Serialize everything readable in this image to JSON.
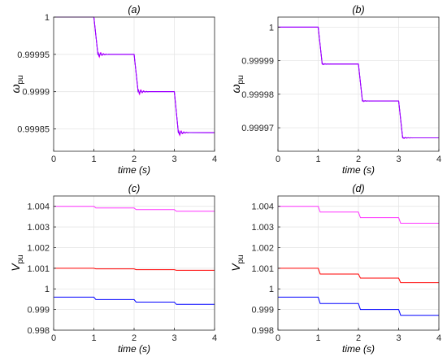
{
  "chart_data": [
    {
      "type": "line",
      "title": "(a)",
      "xlabel": "time (s)",
      "ylabel_main": "ω",
      "ylabel_sub": "pu",
      "xlim": [
        0,
        4
      ],
      "ylim": [
        0.99982,
        1.0
      ],
      "xticks": [
        0,
        1,
        2,
        3,
        4
      ],
      "xtick_labels": [
        "0",
        "1",
        "2",
        "3",
        "4"
      ],
      "yticks": [
        0.99985,
        0.9999,
        0.99995,
        1.0
      ],
      "ytick_labels": [
        "0.99985",
        "0.9999",
        "0.99995",
        "1"
      ],
      "grid": true,
      "series": [
        {
          "color": "#0000ff",
          "steps": [
            [
              1,
              1.0
            ],
            [
              1.1,
              0.99995
            ],
            [
              2,
              0.99995
            ],
            [
              2.1,
              0.9999
            ],
            [
              3,
              0.9999
            ],
            [
              3.1,
              0.999845
            ],
            [
              4,
              0.999845
            ]
          ],
          "osc": 2e-06
        },
        {
          "color": "#ff00ff",
          "steps": [
            [
              1,
              1.0
            ],
            [
              1.1,
              0.99995
            ],
            [
              2,
              0.99995
            ],
            [
              2.1,
              0.9999
            ],
            [
              3,
              0.9999
            ],
            [
              3.1,
              0.999845
            ],
            [
              4,
              0.999845
            ]
          ],
          "osc": 6e-06
        },
        {
          "color": "#9900ff",
          "steps": [
            [
              1,
              1.0
            ],
            [
              1.1,
              0.99995
            ],
            [
              2,
              0.99995
            ],
            [
              2.1,
              0.9999
            ],
            [
              3,
              0.9999
            ],
            [
              3.1,
              0.999845
            ],
            [
              4,
              0.999845
            ]
          ],
          "osc": 4e-06
        }
      ]
    },
    {
      "type": "line",
      "title": "(b)",
      "xlabel": "time (s)",
      "ylabel_main": "ω",
      "ylabel_sub": "pu",
      "xlim": [
        0,
        4
      ],
      "ylim": [
        0.999963,
        1.000003
      ],
      "xticks": [
        0,
        1,
        2,
        3,
        4
      ],
      "xtick_labels": [
        "0",
        "1",
        "2",
        "3",
        "4"
      ],
      "yticks": [
        0.99997,
        0.99998,
        0.99999,
        1.0
      ],
      "ytick_labels": [
        "0.99997",
        "0.99998",
        "0.99999",
        "1"
      ],
      "grid": true,
      "series": [
        {
          "color": "#0000ff",
          "steps": [
            [
              0,
              1.0
            ],
            [
              1,
              1.0
            ],
            [
              1.1,
              0.999989
            ],
            [
              2,
              0.999989
            ],
            [
              2.1,
              0.999978
            ],
            [
              3,
              0.999978
            ],
            [
              3.1,
              0.999967
            ],
            [
              4,
              0.999967
            ]
          ],
          "osc": 0.0
        },
        {
          "color": "#ff00ff",
          "steps": [
            [
              0,
              1.0
            ],
            [
              1,
              1.0
            ],
            [
              1.1,
              0.999989
            ],
            [
              2,
              0.999989
            ],
            [
              2.1,
              0.999978
            ],
            [
              3,
              0.999978
            ],
            [
              3.1,
              0.999967
            ],
            [
              4,
              0.999967
            ]
          ],
          "osc": 3e-07
        },
        {
          "color": "#9900ff",
          "steps": [
            [
              0,
              1.0
            ],
            [
              1,
              1.0
            ],
            [
              1.1,
              0.999989
            ],
            [
              2,
              0.999989
            ],
            [
              2.1,
              0.999978
            ],
            [
              3,
              0.999978
            ],
            [
              3.1,
              0.999967
            ],
            [
              4,
              0.999967
            ]
          ],
          "osc": 2e-07
        }
      ]
    },
    {
      "type": "line",
      "title": "(c)",
      "xlabel": "time (s)",
      "ylabel_main": "V",
      "ylabel_sub": "pu",
      "xlim": [
        0,
        4
      ],
      "ylim": [
        0.998,
        1.0045
      ],
      "xticks": [
        0,
        1,
        2,
        3,
        4
      ],
      "xtick_labels": [
        "0",
        "1",
        "2",
        "3",
        "4"
      ],
      "yticks": [
        0.998,
        0.999,
        1.0,
        1.001,
        1.002,
        1.003,
        1.004
      ],
      "ytick_labels": [
        "0.998",
        "0.999",
        "1",
        "1.001",
        "1.002",
        "1.003",
        "1.004"
      ],
      "grid": true,
      "series": [
        {
          "color": "#ff33ff",
          "steps": [
            [
              0,
              1.004
            ],
            [
              1,
              1.004
            ],
            [
              1.05,
              1.00392
            ],
            [
              2,
              1.00392
            ],
            [
              2.05,
              1.00384
            ],
            [
              3,
              1.00384
            ],
            [
              3.05,
              1.00376
            ],
            [
              4,
              1.00376
            ]
          ],
          "osc": 0.0
        },
        {
          "color": "#ff0000",
          "steps": [
            [
              0,
              1.001
            ],
            [
              1,
              1.001
            ],
            [
              1.05,
              1.00097
            ],
            [
              2,
              1.00097
            ],
            [
              2.05,
              1.00093
            ],
            [
              3,
              1.00093
            ],
            [
              3.05,
              1.0009
            ],
            [
              4,
              1.0009
            ]
          ],
          "osc": 0.0
        },
        {
          "color": "#0000ff",
          "steps": [
            [
              0,
              0.9996
            ],
            [
              1,
              0.9996
            ],
            [
              1.05,
              0.99948
            ],
            [
              2,
              0.99948
            ],
            [
              2.05,
              0.99936
            ],
            [
              3,
              0.99936
            ],
            [
              3.05,
              0.99925
            ],
            [
              4,
              0.99925
            ]
          ],
          "osc": 0.0
        }
      ]
    },
    {
      "type": "line",
      "title": "(d)",
      "xlabel": "time (s)",
      "ylabel_main": "V",
      "ylabel_sub": "pu",
      "xlim": [
        0,
        4
      ],
      "ylim": [
        0.998,
        1.0045
      ],
      "xticks": [
        0,
        1,
        2,
        3,
        4
      ],
      "xtick_labels": [
        "0",
        "1",
        "2",
        "3",
        "4"
      ],
      "yticks": [
        0.998,
        0.999,
        1.0,
        1.001,
        1.002,
        1.003,
        1.004
      ],
      "ytick_labels": [
        "0.998",
        "0.999",
        "1",
        "1.001",
        "1.002",
        "1.003",
        "1.004"
      ],
      "grid": true,
      "series": [
        {
          "color": "#ff33ff",
          "steps": [
            [
              0,
              1.004
            ],
            [
              1,
              1.004
            ],
            [
              1.05,
              1.00372
            ],
            [
              2,
              1.00372
            ],
            [
              2.05,
              1.00345
            ],
            [
              3,
              1.00345
            ],
            [
              3.05,
              1.00318
            ],
            [
              4,
              1.00318
            ]
          ],
          "osc": 0.0
        },
        {
          "color": "#ff0000",
          "steps": [
            [
              0,
              1.001
            ],
            [
              1,
              1.001
            ],
            [
              1.05,
              1.00072
            ],
            [
              2,
              1.00072
            ],
            [
              2.05,
              1.00052
            ],
            [
              3,
              1.00052
            ],
            [
              3.05,
              1.0003
            ],
            [
              4,
              1.0003
            ]
          ],
          "osc": 0.0
        },
        {
          "color": "#0000ff",
          "steps": [
            [
              0,
              0.9996
            ],
            [
              1,
              0.9996
            ],
            [
              1.05,
              0.99929
            ],
            [
              2,
              0.99929
            ],
            [
              2.05,
              0.999
            ],
            [
              3,
              0.999
            ],
            [
              3.05,
              0.99872
            ],
            [
              4,
              0.99872
            ]
          ],
          "osc": 0.0
        }
      ]
    }
  ]
}
